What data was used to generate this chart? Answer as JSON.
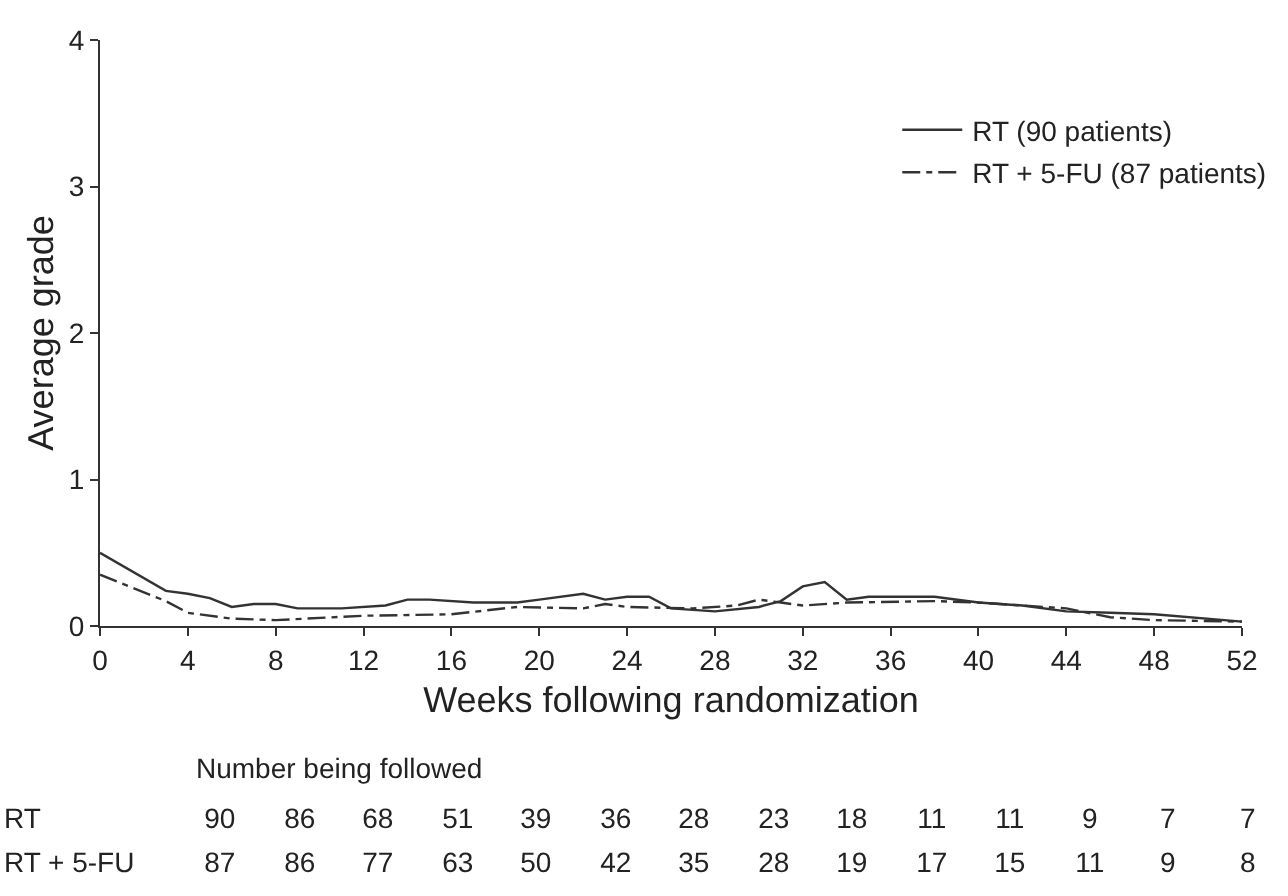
{
  "chart_data": {
    "type": "line",
    "xlabel": "Weeks following randomization",
    "ylabel": "Average grade",
    "xlim": [
      0,
      52
    ],
    "xticks": [
      0,
      4,
      8,
      12,
      16,
      20,
      24,
      28,
      32,
      36,
      40,
      44,
      48,
      52
    ],
    "ylim": [
      0,
      4
    ],
    "yticks": [
      0,
      1,
      2,
      3,
      4
    ],
    "legend": "top right",
    "marker": "none",
    "series": [
      {
        "name": "RT (90 patients)",
        "color": "#333333",
        "line_style": "solid",
        "x": [
          0,
          3,
          4,
          5,
          6,
          7,
          8,
          9,
          11,
          13,
          14,
          15,
          17,
          19,
          20,
          22,
          23,
          24,
          25,
          26,
          28,
          30,
          31,
          32,
          33,
          34,
          35,
          38,
          40,
          42,
          44,
          46,
          48,
          52
        ],
        "values": [
          0.5,
          0.24,
          0.22,
          0.19,
          0.13,
          0.15,
          0.15,
          0.12,
          0.12,
          0.14,
          0.18,
          0.18,
          0.16,
          0.16,
          0.18,
          0.22,
          0.18,
          0.2,
          0.2,
          0.12,
          0.1,
          0.13,
          0.17,
          0.27,
          0.3,
          0.18,
          0.2,
          0.2,
          0.16,
          0.14,
          0.1,
          0.09,
          0.08,
          0.03
        ]
      },
      {
        "name": "RT + 5-FU (87 patients)",
        "color": "#333333",
        "line_style": "dashed",
        "x": [
          0,
          3,
          4,
          6,
          8,
          12,
          16,
          19,
          22,
          23,
          24,
          27,
          29,
          30,
          31,
          32,
          34,
          38,
          40,
          44,
          46,
          48,
          52
        ],
        "values": [
          0.35,
          0.17,
          0.09,
          0.05,
          0.04,
          0.07,
          0.08,
          0.13,
          0.12,
          0.15,
          0.13,
          0.12,
          0.14,
          0.18,
          0.16,
          0.14,
          0.16,
          0.17,
          0.16,
          0.12,
          0.06,
          0.04,
          0.03
        ]
      }
    ],
    "annotations": [
      "Number being followed",
      "RT",
      "90 86 68 51 39 36 28 23 18 11 11 9 7 7",
      "RT + 5-FU",
      "87 86 77 63 50 42 35 28 19 17 15 11 9 8"
    ]
  }
}
